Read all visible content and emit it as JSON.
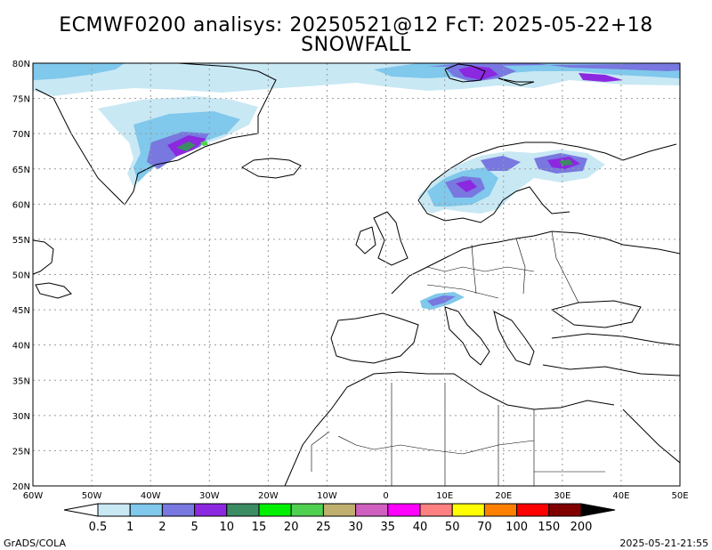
{
  "title_line1": "ECMWF0200 analisys: 20250521@12 FcT: 2025-05-22+18",
  "title_line2": "SNOWFALL",
  "footer_left": "GrADS/COLA",
  "footer_right": "2025-05-21-21:55",
  "map": {
    "lat_labels": [
      "80N",
      "75N",
      "70N",
      "65N",
      "60N",
      "55N",
      "50N",
      "45N",
      "40N",
      "35N",
      "30N",
      "25N",
      "20N"
    ],
    "lon_labels": [
      "60W",
      "50W",
      "40W",
      "30W",
      "20W",
      "10W",
      "0",
      "10E",
      "20E",
      "30E",
      "40E",
      "50E"
    ],
    "lon_range": [
      -60,
      50
    ],
    "lat_range": [
      20,
      80
    ],
    "grid": "dotted"
  },
  "colorbar": {
    "labels": [
      "0.5",
      "1",
      "2",
      "5",
      "10",
      "15",
      "20",
      "25",
      "30",
      "35",
      "40",
      "50",
      "70",
      "100",
      "150",
      "200"
    ],
    "colors": [
      "#c8e8f4",
      "#80c8ec",
      "#7878e0",
      "#8c28e0",
      "#3c8c64",
      "#00f000",
      "#50d050",
      "#c0b070",
      "#d060c0",
      "#ff00ff",
      "#ff8080",
      "#ffff00",
      "#ff8000",
      "#ff0000",
      "#800000",
      "#000000"
    ]
  }
}
